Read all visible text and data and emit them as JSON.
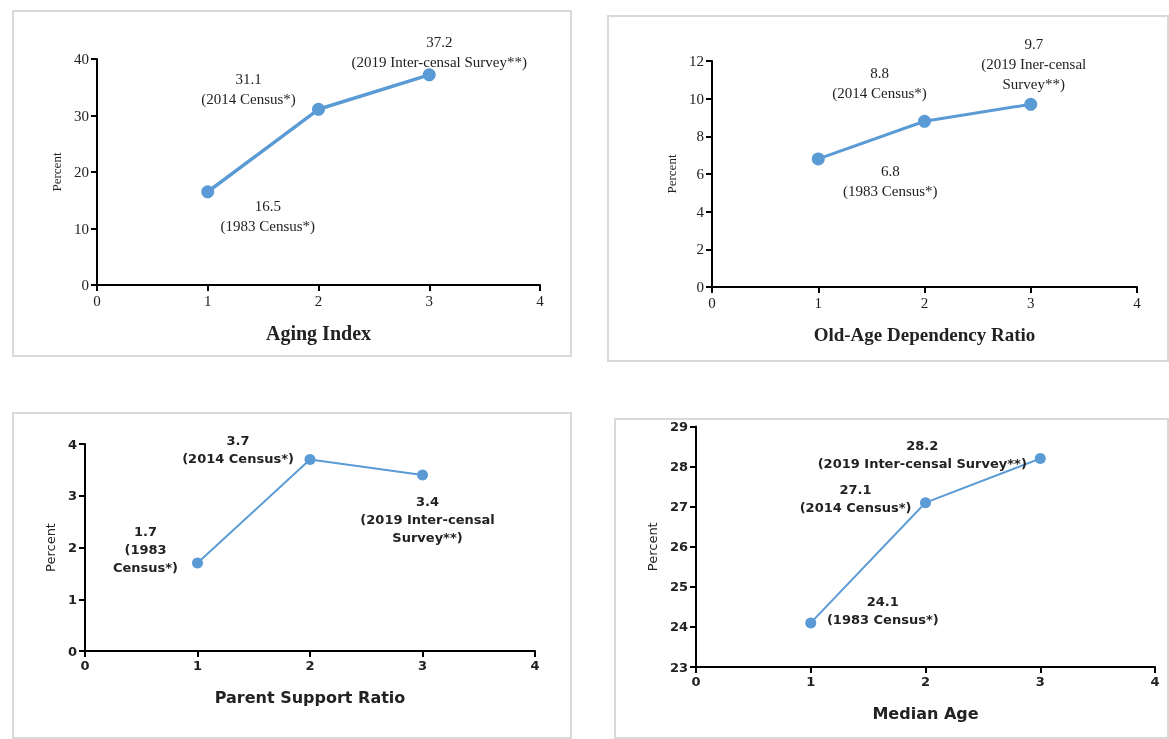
{
  "chart_data": [
    {
      "type": "line",
      "x": [
        1,
        2,
        3
      ],
      "xlabel": "Aging Index",
      "ylabel": "Percent",
      "xlim": [
        0,
        4
      ],
      "xticks": [
        0,
        1,
        2,
        3,
        4
      ],
      "ylim": [
        0,
        40
      ],
      "yticks": [
        0,
        10,
        20,
        30,
        40
      ],
      "grid": false,
      "marker": "circle",
      "line_style": "solid",
      "series": [
        {
          "color": "#5b9bd5",
          "values": [
            16.5,
            31.1,
            37.2
          ],
          "value_labels": [
            "16.5\n(1983 Census*)",
            "31.1\n(2014 Census*)",
            "37.2\n(2019 Inter-censal Survey**)"
          ]
        }
      ]
    },
    {
      "type": "line",
      "x": [
        1,
        2,
        3
      ],
      "xlabel": "Old-Age Dependency Ratio",
      "ylabel": "Percent",
      "xlim": [
        0,
        4
      ],
      "xticks": [
        0,
        1,
        2,
        3,
        4
      ],
      "ylim": [
        0,
        12
      ],
      "yticks": [
        0,
        2,
        4,
        6,
        8,
        10,
        12
      ],
      "grid": false,
      "marker": "circle",
      "line_style": "solid",
      "series": [
        {
          "color": "#5b9bd5",
          "values": [
            6.8,
            8.8,
            9.7
          ],
          "value_labels": [
            "6.8\n(1983 Census*)",
            "8.8\n(2014 Census*)",
            "9.7\n(2019 Iner-censal\nSurvey**)"
          ]
        }
      ]
    },
    {
      "type": "line",
      "x": [
        1,
        2,
        3
      ],
      "xlabel": "Parent Support Ratio",
      "ylabel": "Percent",
      "xlim": [
        0,
        4
      ],
      "xticks": [
        0,
        1,
        2,
        3,
        4
      ],
      "ylim": [
        0,
        4
      ],
      "yticks": [
        0,
        1,
        2,
        3,
        4
      ],
      "grid": false,
      "marker": "circle",
      "line_style": "solid",
      "series": [
        {
          "color": "#5b9bd5",
          "values": [
            1.7,
            3.7,
            3.4
          ],
          "value_labels": [
            "1.7\n(1983\nCensus*)",
            "3.7\n(2014 Census*)",
            "3.4\n(2019 Inter-censal\nSurvey**)"
          ]
        }
      ]
    },
    {
      "type": "line",
      "x": [
        1,
        2,
        3
      ],
      "xlabel": "Median Age",
      "ylabel": "Percent",
      "xlim": [
        0,
        4
      ],
      "xticks": [
        0,
        1,
        2,
        3,
        4
      ],
      "ylim": [
        23,
        29
      ],
      "yticks": [
        23,
        24,
        25,
        26,
        27,
        28,
        29
      ],
      "grid": false,
      "marker": "circle",
      "line_style": "solid",
      "series": [
        {
          "color": "#5b9bd5",
          "values": [
            24.1,
            27.1,
            28.2
          ],
          "value_labels": [
            "24.1\n(1983 Census*)",
            "27.1\n(2014 Census*)",
            "28.2\n(2019 Inter-censal Survey**)"
          ]
        }
      ]
    }
  ]
}
